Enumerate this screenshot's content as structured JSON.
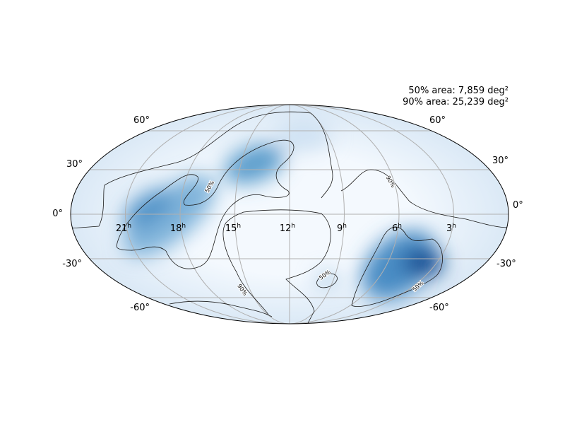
{
  "annotation": {
    "lines": [
      "50% area: 7,859 deg²",
      "90% area: 25,239 deg²"
    ]
  },
  "ra_labels": [
    {
      "number": "21",
      "sup": "h"
    },
    {
      "number": "18",
      "sup": "h"
    },
    {
      "number": "15",
      "sup": "h"
    },
    {
      "number": "12",
      "sup": "h"
    },
    {
      "number": "9",
      "sup": "h"
    },
    {
      "number": "6",
      "sup": "h"
    },
    {
      "number": "3",
      "sup": "h"
    }
  ],
  "dec_labels_left": [
    "60°",
    "30°",
    "0°",
    "-30°",
    "-60°"
  ],
  "dec_labels_right": [
    "60°",
    "30°",
    "0°",
    "-30°",
    "-60°"
  ],
  "contour_labels": [
    "50%",
    "90%",
    "50%",
    "50%",
    "90%"
  ]
}
